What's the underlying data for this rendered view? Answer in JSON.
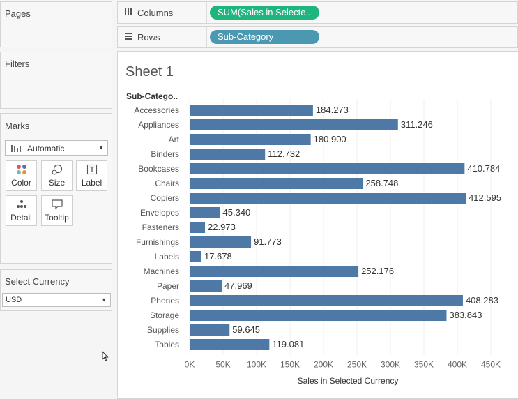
{
  "cards": {
    "pages": {
      "title": "Pages"
    },
    "filters": {
      "title": "Filters"
    },
    "marks": {
      "title": "Marks",
      "type_select": "Automatic",
      "buttons": [
        {
          "label": "Color",
          "icon": "color-dots-icon"
        },
        {
          "label": "Size",
          "icon": "size-icon"
        },
        {
          "label": "Label",
          "icon": "label-icon"
        },
        {
          "label": "Detail",
          "icon": "detail-icon"
        },
        {
          "label": "Tooltip",
          "icon": "tooltip-icon"
        }
      ]
    },
    "parameter": {
      "title": "Select Currency",
      "value": "USD"
    }
  },
  "shelves": {
    "columns": {
      "label": "Columns",
      "pill": "SUM(Sales in Selecte..",
      "pill_color": "#1eb57e"
    },
    "rows": {
      "label": "Rows",
      "pill": "Sub-Category",
      "pill_color": "#4b98b2"
    }
  },
  "sheet": {
    "title": "Sheet 1"
  },
  "chart_data": {
    "type": "bar",
    "orientation": "horizontal",
    "row_header": "Sub-Catego..",
    "categories": [
      "Accessories",
      "Appliances",
      "Art",
      "Binders",
      "Bookcases",
      "Chairs",
      "Copiers",
      "Envelopes",
      "Fasteners",
      "Furnishings",
      "Labels",
      "Machines",
      "Paper",
      "Phones",
      "Storage",
      "Supplies",
      "Tables"
    ],
    "values": [
      184273,
      311246,
      180900,
      112732,
      410784,
      258748,
      412595,
      45340,
      22973,
      91773,
      17678,
      252176,
      47969,
      408283,
      383843,
      59645,
      119081
    ],
    "value_labels": [
      "184.273",
      "311.246",
      "180.900",
      "112.732",
      "410.784",
      "258.748",
      "412.595",
      "45.340",
      "22.973",
      "91.773",
      "17.678",
      "252.176",
      "47.969",
      "408.283",
      "383.843",
      "59.645",
      "119.081"
    ],
    "x_ticks": [
      0,
      50000,
      100000,
      150000,
      200000,
      250000,
      300000,
      350000,
      400000,
      450000
    ],
    "x_tick_labels": [
      "0K",
      "50K",
      "100K",
      "150K",
      "200K",
      "250K",
      "300K",
      "350K",
      "400K",
      "450K"
    ],
    "xlabel": "Sales in Selected Currency",
    "xlim": [
      0,
      450000
    ],
    "grid": "vertical",
    "bar_color": "#4e79a7"
  }
}
